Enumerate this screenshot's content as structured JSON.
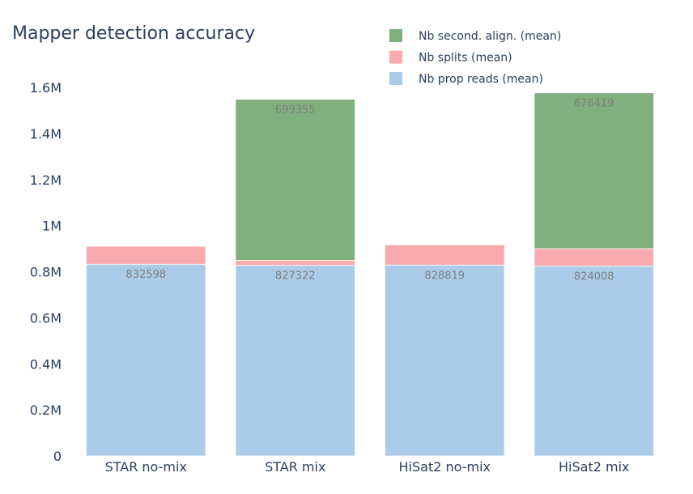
{
  "chart_data": {
    "type": "bar",
    "stacked": true,
    "title": "Mapper detection accuracy",
    "xlabel": "",
    "ylabel": "",
    "categories": [
      "STAR no-mix",
      "STAR mix",
      "HiSat2 no-mix",
      "HiSat2 mix"
    ],
    "ylim": [
      0,
      1600000
    ],
    "yticks": [
      {
        "value": 0,
        "label": "0"
      },
      {
        "value": 200000,
        "label": "0.2M"
      },
      {
        "value": 400000,
        "label": "0.4M"
      },
      {
        "value": 600000,
        "label": "0.6M"
      },
      {
        "value": 800000,
        "label": "0.8M"
      },
      {
        "value": 1000000,
        "label": "1M"
      },
      {
        "value": 1200000,
        "label": "1.2M"
      },
      {
        "value": 1400000,
        "label": "1.4M"
      },
      {
        "value": 1600000,
        "label": "1.6M"
      }
    ],
    "grid": false,
    "legend_position": "top-right",
    "series": [
      {
        "name": "Nb prop reads (mean)",
        "color": "#abcce8",
        "values": [
          832598,
          827322,
          828819,
          824008
        ],
        "labels": [
          "832598",
          "827322",
          "828819",
          "824008"
        ]
      },
      {
        "name": "Nb splits (mean)",
        "color": "#f8aaae",
        "values": [
          78000,
          22000,
          88000,
          76000
        ],
        "labels": [
          "",
          "",
          "",
          ""
        ]
      },
      {
        "name": "Nb second. align. (mean)",
        "color": "#7fb07d",
        "values": [
          0,
          699355,
          0,
          676419
        ],
        "labels": [
          "",
          "699355",
          "",
          "676419"
        ]
      }
    ],
    "legend_order": [
      2,
      1,
      0
    ]
  }
}
